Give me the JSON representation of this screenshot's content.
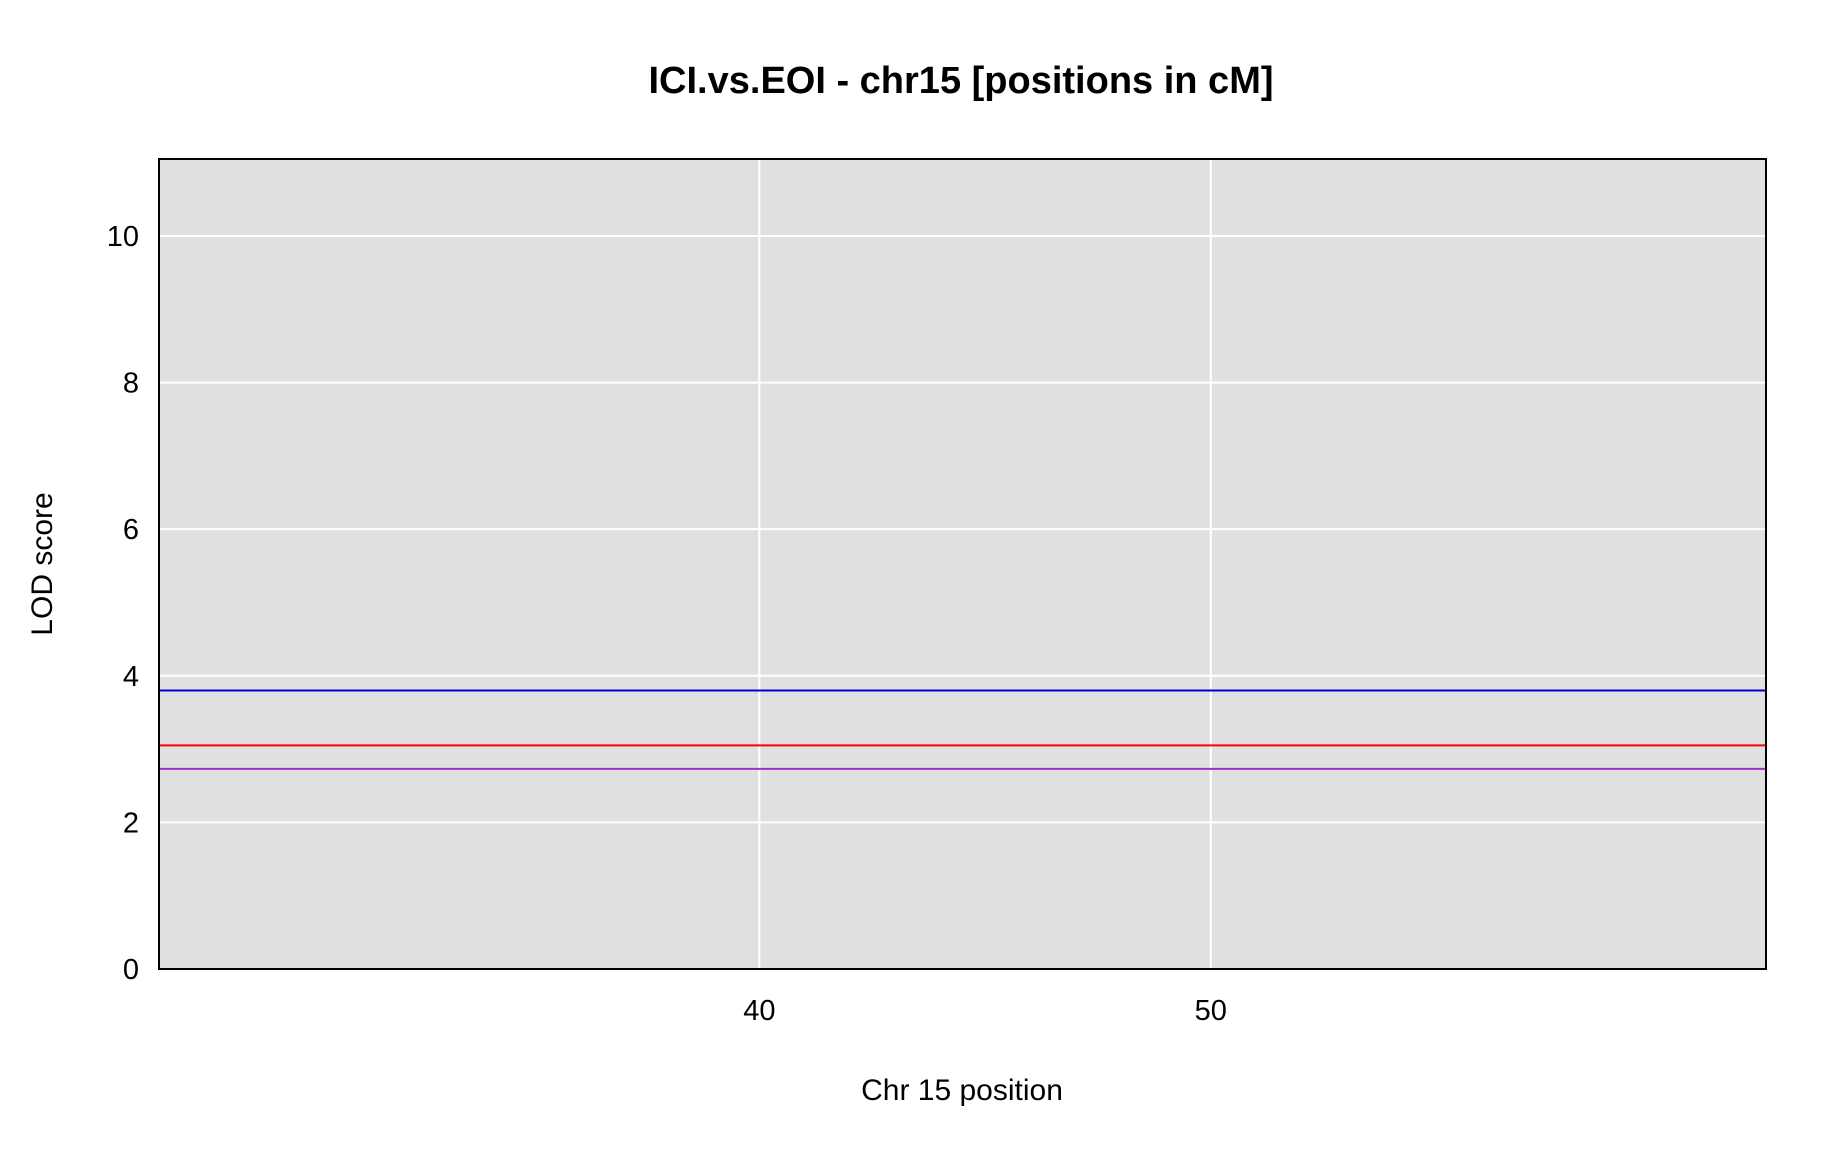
{
  "chart_data": {
    "type": "line",
    "title": "ICI.vs.EOI - chr15 [positions in cM]",
    "xlabel": "Chr 15 position",
    "ylabel": "LOD score",
    "xlim": [
      26.7,
      62.3
    ],
    "ylim": [
      0,
      11.05
    ],
    "x_ticks": [
      40,
      50
    ],
    "y_ticks": [
      0,
      2,
      4,
      6,
      8,
      10
    ],
    "grid": true,
    "plot_background": "#e0e0e0",
    "grid_color": "#ffffff",
    "legend": "none",
    "series": [
      {
        "color": "#0000cc",
        "values": [
          3.8,
          3.8
        ]
      },
      {
        "color": "#ff0000",
        "values": [
          3.05,
          3.05
        ]
      },
      {
        "color": "#9933cc",
        "values": [
          2.73,
          2.73
        ]
      }
    ]
  }
}
